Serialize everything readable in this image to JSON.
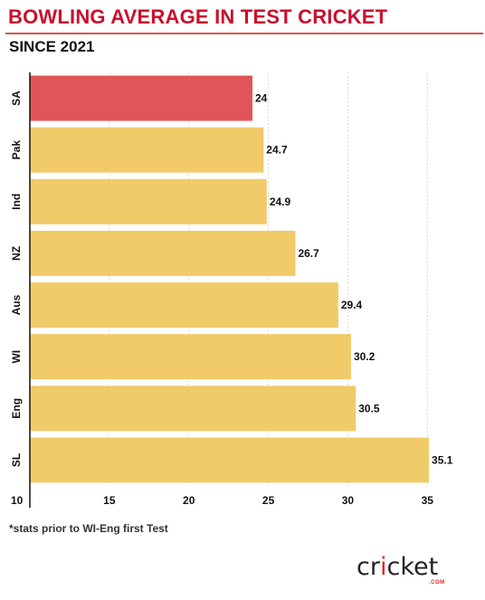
{
  "title": "BOWLING AVERAGE IN TEST CRICKET",
  "subtitle": "SINCE 2021",
  "footnote": "*stats prior to WI-Eng first Test",
  "logo": {
    "text": "cricket",
    "sub": ".COM",
    "accent_color": "#e3262b"
  },
  "colors": {
    "highlight_bar": "#e05558",
    "default_bar": "#f1cb6a",
    "title": "#c8102e"
  },
  "chart_data": {
    "type": "bar",
    "orientation": "horizontal",
    "categories": [
      "SA",
      "Pak",
      "Ind",
      "NZ",
      "Aus",
      "WI",
      "Eng",
      "SL"
    ],
    "values": [
      24,
      24.7,
      24.9,
      26.7,
      29.4,
      30.2,
      30.5,
      35.1
    ],
    "value_labels": [
      "24",
      "24.7",
      "24.9",
      "26.7",
      "29.4",
      "30.2",
      "30.5",
      "35.1"
    ],
    "highlight": "SA",
    "xlim": [
      10,
      38
    ],
    "xticks": [
      10,
      15,
      20,
      25,
      30,
      35
    ],
    "xtick_labels": [
      "10",
      "15",
      "20",
      "25",
      "30",
      "35"
    ],
    "grid": true,
    "xlabel": "",
    "ylabel": ""
  }
}
